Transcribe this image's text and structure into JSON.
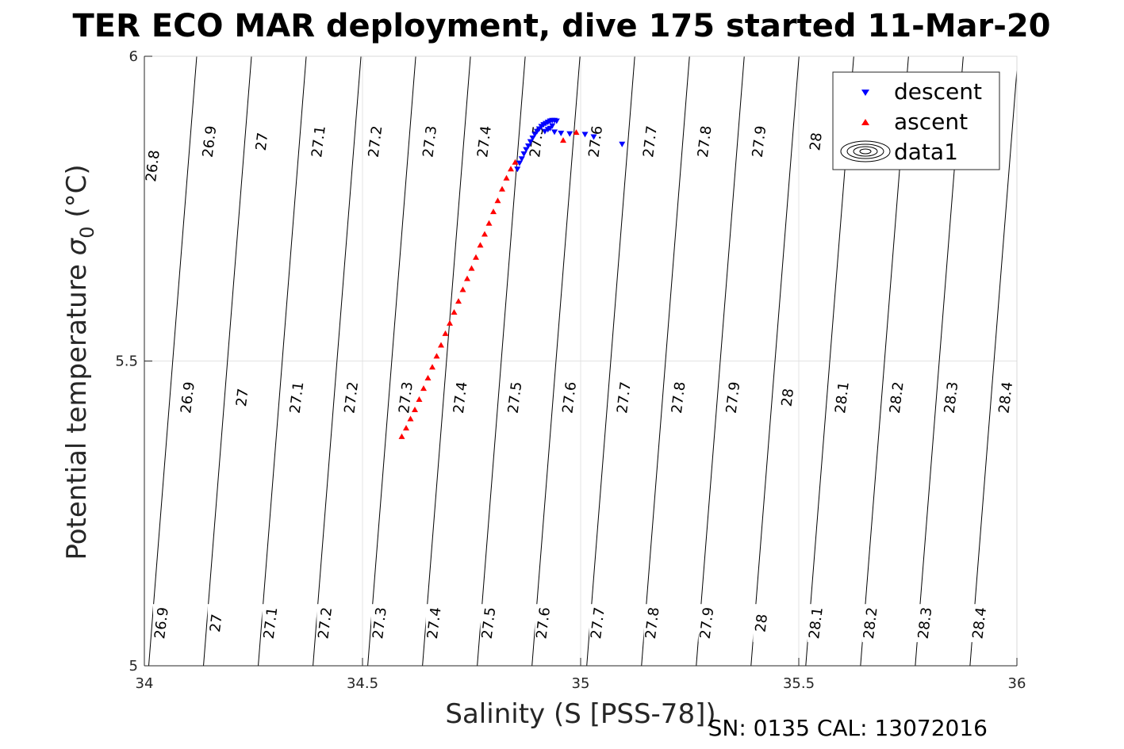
{
  "chart_data": {
    "type": "scatter",
    "title": "TER ECO MAR deployment, dive 175 started 11-Mar-20",
    "xlabel": "Salinity (S [PSS-78])",
    "ylabel_main": "Potential temperature ",
    "ylabel_sigma": "σ",
    "ylabel_sub": "0",
    "ylabel_unit": " (°C)",
    "xlim": [
      34,
      36
    ],
    "ylim": [
      5,
      6
    ],
    "xticks": [
      34,
      34.5,
      35,
      35.5,
      36
    ],
    "yticks": [
      5,
      5.5,
      6
    ],
    "grid": true,
    "legend_position": "top-right",
    "footer": "SN: 0135  CAL: 13072016",
    "contour_labels": [
      {
        "text": "26.8",
        "s": 34.02,
        "t": 5.82
      },
      {
        "text": "26.9",
        "s": 34.15,
        "t": 5.86
      },
      {
        "text": "27",
        "s": 34.27,
        "t": 5.86
      },
      {
        "text": "27.1",
        "s": 34.4,
        "t": 5.86
      },
      {
        "text": "27.2",
        "s": 34.53,
        "t": 5.86
      },
      {
        "text": "27.3",
        "s": 34.655,
        "t": 5.86
      },
      {
        "text": "27.4",
        "s": 34.78,
        "t": 5.86
      },
      {
        "text": "27.5",
        "s": 34.9,
        "t": 5.86
      },
      {
        "text": "27.6",
        "s": 35.035,
        "t": 5.86
      },
      {
        "text": "27.7",
        "s": 35.16,
        "t": 5.86
      },
      {
        "text": "27.8",
        "s": 35.285,
        "t": 5.86
      },
      {
        "text": "27.9",
        "s": 35.41,
        "t": 5.86
      },
      {
        "text": "28",
        "s": 35.54,
        "t": 5.86
      },
      {
        "text": "26.9",
        "s": 34.1,
        "t": 5.44
      },
      {
        "text": "27",
        "s": 34.225,
        "t": 5.44
      },
      {
        "text": "27.1",
        "s": 34.35,
        "t": 5.44
      },
      {
        "text": "27.2",
        "s": 34.475,
        "t": 5.44
      },
      {
        "text": "27.3",
        "s": 34.6,
        "t": 5.44
      },
      {
        "text": "27.4",
        "s": 34.725,
        "t": 5.44
      },
      {
        "text": "27.5",
        "s": 34.85,
        "t": 5.44
      },
      {
        "text": "27.6",
        "s": 34.975,
        "t": 5.44
      },
      {
        "text": "27.7",
        "s": 35.1,
        "t": 5.44
      },
      {
        "text": "27.8",
        "s": 35.225,
        "t": 5.44
      },
      {
        "text": "27.9",
        "s": 35.35,
        "t": 5.44
      },
      {
        "text": "28",
        "s": 35.475,
        "t": 5.44
      },
      {
        "text": "28.1",
        "s": 35.6,
        "t": 5.44
      },
      {
        "text": "28.2",
        "s": 35.725,
        "t": 5.44
      },
      {
        "text": "28.3",
        "s": 35.85,
        "t": 5.44
      },
      {
        "text": "28.4",
        "s": 35.975,
        "t": 5.44
      },
      {
        "text": "26.9",
        "s": 34.04,
        "t": 5.07
      },
      {
        "text": "27",
        "s": 34.165,
        "t": 5.07
      },
      {
        "text": "27.1",
        "s": 34.29,
        "t": 5.07
      },
      {
        "text": "27.2",
        "s": 34.415,
        "t": 5.07
      },
      {
        "text": "27.3",
        "s": 34.54,
        "t": 5.07
      },
      {
        "text": "27.4",
        "s": 34.665,
        "t": 5.07
      },
      {
        "text": "27.5",
        "s": 34.79,
        "t": 5.07
      },
      {
        "text": "27.6",
        "s": 34.915,
        "t": 5.07
      },
      {
        "text": "27.7",
        "s": 35.04,
        "t": 5.07
      },
      {
        "text": "27.8",
        "s": 35.165,
        "t": 5.07
      },
      {
        "text": "27.9",
        "s": 35.29,
        "t": 5.07
      },
      {
        "text": "28",
        "s": 35.415,
        "t": 5.07
      },
      {
        "text": "28.1",
        "s": 35.54,
        "t": 5.07
      },
      {
        "text": "28.2",
        "s": 35.665,
        "t": 5.07
      },
      {
        "text": "28.3",
        "s": 35.79,
        "t": 5.07
      },
      {
        "text": "28.4",
        "s": 35.915,
        "t": 5.07
      }
    ],
    "series": [
      {
        "name": "descent",
        "marker": "triangle-down",
        "color": "#0000ff",
        "points": [
          [
            34.855,
            5.815
          ],
          [
            34.86,
            5.825
          ],
          [
            34.865,
            5.832
          ],
          [
            34.87,
            5.84
          ],
          [
            34.875,
            5.847
          ],
          [
            34.88,
            5.853
          ],
          [
            34.885,
            5.86
          ],
          [
            34.89,
            5.866
          ],
          [
            34.895,
            5.872
          ],
          [
            34.9,
            5.877
          ],
          [
            34.905,
            5.881
          ],
          [
            34.91,
            5.885
          ],
          [
            34.915,
            5.888
          ],
          [
            34.92,
            5.89
          ],
          [
            34.925,
            5.892
          ],
          [
            34.93,
            5.894
          ],
          [
            34.935,
            5.895
          ],
          [
            34.94,
            5.895
          ],
          [
            34.945,
            5.894
          ],
          [
            34.935,
            5.886
          ],
          [
            34.93,
            5.882
          ],
          [
            34.925,
            5.88
          ],
          [
            34.918,
            5.877
          ],
          [
            34.94,
            5.876
          ],
          [
            34.955,
            5.874
          ],
          [
            34.975,
            5.873
          ],
          [
            35.01,
            5.872
          ],
          [
            35.03,
            5.868
          ],
          [
            35.095,
            5.856
          ]
        ]
      },
      {
        "name": "ascent",
        "marker": "triangle-up",
        "color": "#ff0000",
        "points": [
          [
            34.59,
            5.376
          ],
          [
            34.6,
            5.39
          ],
          [
            34.61,
            5.405
          ],
          [
            34.62,
            5.42
          ],
          [
            34.63,
            5.437
          ],
          [
            34.64,
            5.455
          ],
          [
            34.65,
            5.472
          ],
          [
            34.66,
            5.49
          ],
          [
            34.67,
            5.508
          ],
          [
            34.68,
            5.526
          ],
          [
            34.69,
            5.545
          ],
          [
            34.7,
            5.562
          ],
          [
            34.71,
            5.58
          ],
          [
            34.72,
            5.598
          ],
          [
            34.73,
            5.617
          ],
          [
            34.74,
            5.635
          ],
          [
            34.75,
            5.652
          ],
          [
            34.76,
            5.67
          ],
          [
            34.77,
            5.69
          ],
          [
            34.78,
            5.708
          ],
          [
            34.79,
            5.726
          ],
          [
            34.8,
            5.745
          ],
          [
            34.81,
            5.763
          ],
          [
            34.82,
            5.782
          ],
          [
            34.83,
            5.8
          ],
          [
            34.84,
            5.815
          ],
          [
            34.85,
            5.826
          ],
          [
            34.96,
            5.862
          ],
          [
            34.99,
            5.875
          ]
        ]
      },
      {
        "name": "data1",
        "marker": "contour"
      }
    ]
  }
}
